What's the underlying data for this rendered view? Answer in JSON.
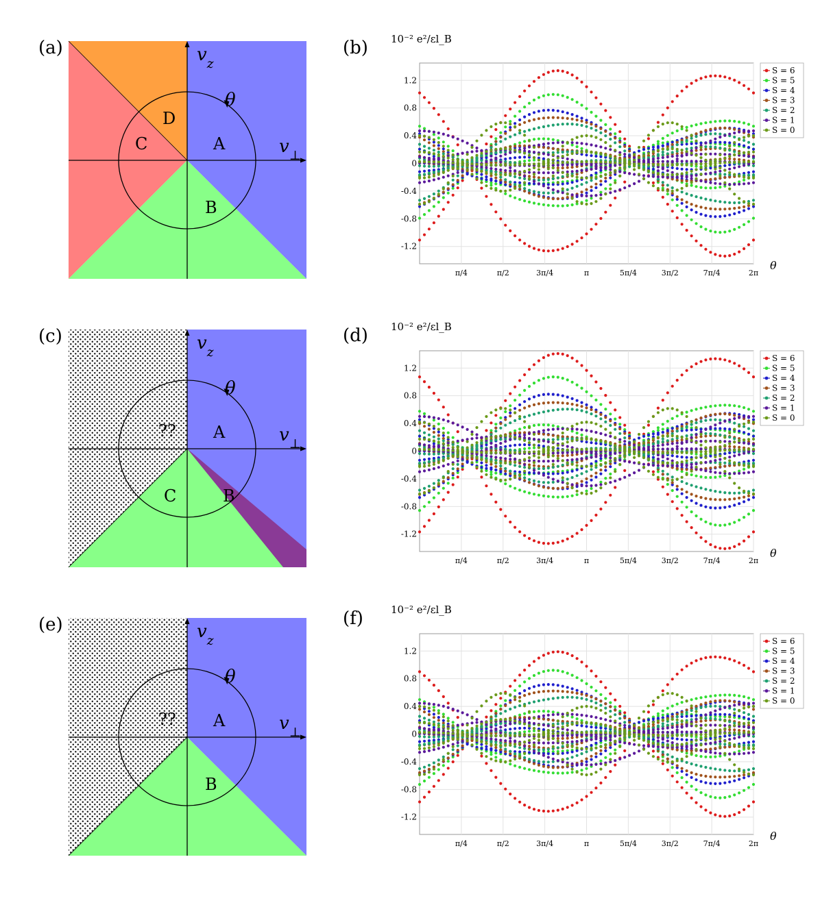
{
  "colors": {
    "blue": "#8080ff",
    "green": "#88ff88",
    "red": "#ff8080",
    "orange": "#ffa040",
    "purple": "#8a3a96",
    "dots": "#222222"
  },
  "phase_panels": [
    {
      "id": "a",
      "label": "(a)",
      "variant": "full",
      "axis_z": "v_z",
      "axis_perp": "v_⊥",
      "theta": "θ",
      "region_labels": [
        "A",
        "B",
        "C",
        "D"
      ]
    },
    {
      "id": "c",
      "label": "(c)",
      "variant": "sliver",
      "axis_z": "v_z",
      "axis_perp": "v_⊥",
      "theta": "θ",
      "region_labels": [
        "A",
        "B",
        "C",
        "??"
      ]
    },
    {
      "id": "e",
      "label": "(e)",
      "variant": "dotted",
      "axis_z": "v_z",
      "axis_perp": "v_⊥",
      "theta": "θ",
      "region_labels": [
        "A",
        "B",
        "??"
      ]
    }
  ],
  "chart_data": [
    {
      "id": "b",
      "type": "scatter",
      "label": "(b)",
      "unit_label": "10⁻² e²/εl_B",
      "xlabel": "θ",
      "xlim": [
        0,
        6.2832
      ],
      "ylim": [
        -1.45,
        1.45
      ],
      "yticks": [
        "1.2",
        "0.8",
        "0.4",
        "0",
        "-0.4",
        "-0.8",
        "-1.2"
      ],
      "ytick_values": [
        1.2,
        0.8,
        0.4,
        0,
        -0.4,
        -0.8,
        -1.2
      ],
      "xticks": [
        "π/4",
        "π/2",
        "3π/4",
        "π",
        "5π/4",
        "3π/2",
        "7π/4",
        "2π"
      ],
      "xtick_values": [
        0.7854,
        1.5708,
        2.3562,
        3.1416,
        3.927,
        4.7124,
        5.4978,
        6.2832
      ],
      "legend": [
        "S = 6",
        "S = 5",
        "S = 4",
        "S = 3",
        "S = 2",
        "S = 1",
        "S = 0"
      ],
      "series_colors": [
        "#dd1c1c",
        "#33dd33",
        "#1f1fcc",
        "#a0521c",
        "#1fa070",
        "#5b1a9a",
        "#6b9a1a"
      ],
      "envelope_amplitude": [
        1.3,
        1.02,
        0.86,
        0.7,
        0.62,
        0.58,
        0.62
      ]
    },
    {
      "id": "d",
      "type": "scatter",
      "label": "(d)",
      "unit_label": "10⁻² e²/εl_B",
      "xlabel": "θ",
      "xlim": [
        0,
        6.2832
      ],
      "ylim": [
        -1.45,
        1.45
      ],
      "yticks": [
        "1.2",
        "0.8",
        "0.4",
        "0",
        "-0.4",
        "-0.8",
        "-1.2"
      ],
      "ytick_values": [
        1.2,
        0.8,
        0.4,
        0,
        -0.4,
        -0.8,
        -1.2
      ],
      "xticks": [
        "π/4",
        "π/2",
        "3π/4",
        "π",
        "5π/4",
        "3π/2",
        "7π/4",
        "2π"
      ],
      "xtick_values": [
        0.7854,
        1.5708,
        2.3562,
        3.1416,
        3.927,
        4.7124,
        5.4978,
        6.2832
      ],
      "legend": [
        "S = 6",
        "S = 5",
        "S = 4",
        "S = 3",
        "S = 2",
        "S = 1",
        "S = 0"
      ],
      "series_colors": [
        "#dd1c1c",
        "#33dd33",
        "#1f1fcc",
        "#a0521c",
        "#1fa070",
        "#5b1a9a",
        "#6b9a1a"
      ],
      "envelope_amplitude": [
        1.37,
        1.1,
        0.92,
        0.74,
        0.66,
        0.62,
        0.65
      ]
    },
    {
      "id": "f",
      "type": "scatter",
      "label": "(f)",
      "unit_label": "10⁻² e²/εl_B",
      "xlabel": "θ",
      "xlim": [
        0,
        6.2832
      ],
      "ylim": [
        -1.45,
        1.45
      ],
      "yticks": [
        "1.2",
        "0.8",
        "0.4",
        "0",
        "-0.4",
        "-0.8",
        "-1.2"
      ],
      "ytick_values": [
        1.2,
        0.8,
        0.4,
        0,
        -0.4,
        -0.8,
        -1.2
      ],
      "xticks": [
        "π/4",
        "π/2",
        "3π/4",
        "π",
        "5π/4",
        "3π/2",
        "7π/4",
        "2π"
      ],
      "xtick_values": [
        0.7854,
        1.5708,
        2.3562,
        3.1416,
        3.927,
        4.7124,
        5.4978,
        6.2832
      ],
      "legend": [
        "S = 6",
        "S = 5",
        "S = 4",
        "S = 3",
        "S = 2",
        "S = 1",
        "S = 0"
      ],
      "series_colors": [
        "#dd1c1c",
        "#33dd33",
        "#1f1fcc",
        "#a0521c",
        "#1fa070",
        "#5b1a9a",
        "#6b9a1a"
      ],
      "envelope_amplitude": [
        1.15,
        0.94,
        0.8,
        0.66,
        0.58,
        0.55,
        0.62
      ]
    }
  ]
}
